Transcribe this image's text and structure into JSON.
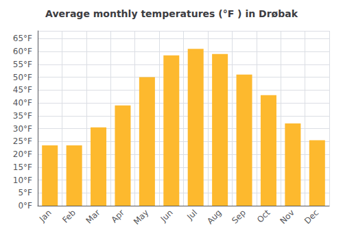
{
  "chart_data": {
    "type": "bar",
    "title": "Average monthly temperatures (°F ) in Drøbak",
    "categories": [
      "Jan",
      "Feb",
      "Mar",
      "Apr",
      "May",
      "Jun",
      "Jul",
      "Aug",
      "Sep",
      "Oct",
      "Nov",
      "Dec"
    ],
    "values": [
      23.5,
      23.5,
      30.5,
      39.0,
      50.0,
      58.5,
      61.0,
      59.0,
      51.0,
      43.0,
      32.0,
      25.5
    ],
    "color": "#FDB92E",
    "ylim": [
      0,
      68
    ],
    "yticks": [
      {
        "value": 0,
        "label": "0°F"
      },
      {
        "value": 5,
        "label": "5°F"
      },
      {
        "value": 10,
        "label": "10°F"
      },
      {
        "value": 15,
        "label": "15°F"
      },
      {
        "value": 20,
        "label": "20°F"
      },
      {
        "value": 25,
        "label": "25°F"
      },
      {
        "value": 30,
        "label": "30°F"
      },
      {
        "value": 35,
        "label": "35°F"
      },
      {
        "value": 40,
        "label": "40°F"
      },
      {
        "value": 45,
        "label": "45°F"
      },
      {
        "value": 50,
        "label": "50°F"
      },
      {
        "value": 55,
        "label": "55°F"
      },
      {
        "value": 60,
        "label": "60°F"
      },
      {
        "value": 65,
        "label": "65°F"
      }
    ],
    "grid": true
  }
}
